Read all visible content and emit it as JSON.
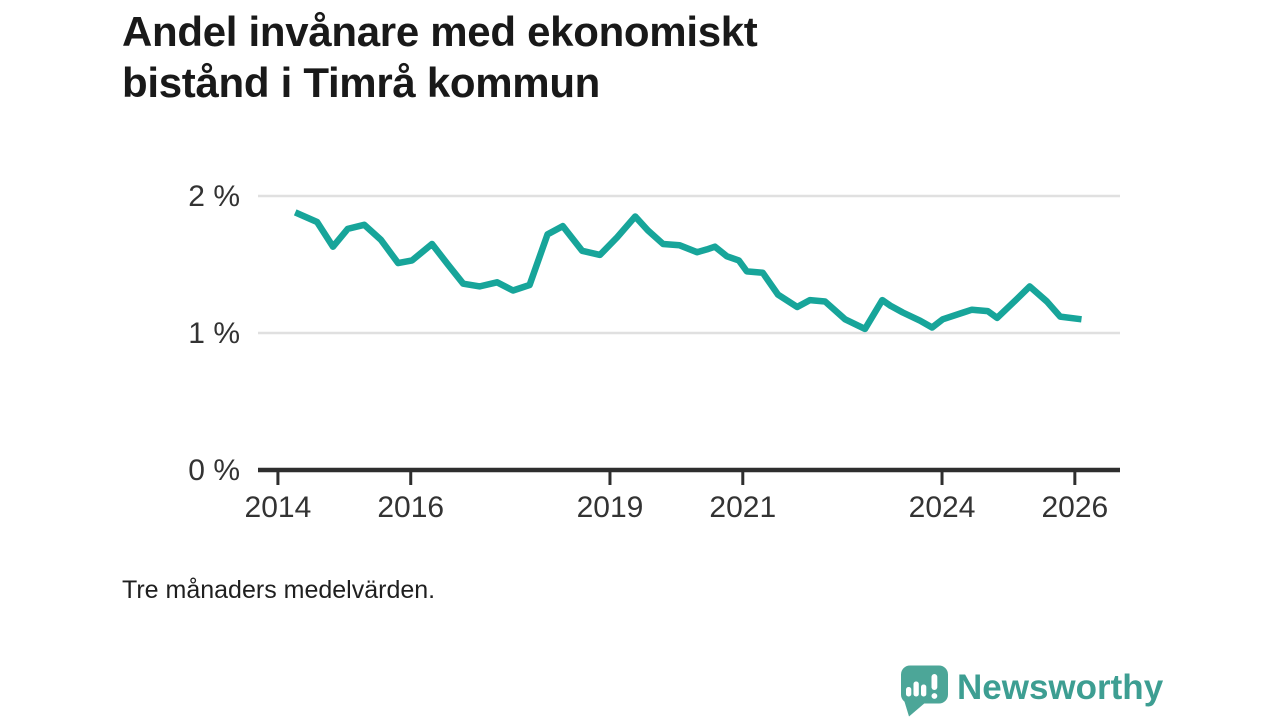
{
  "chart_data": {
    "type": "line",
    "title": "Andel invånare med ekonomiskt bistånd i Timrå kommun",
    "title_lines": [
      "Andel invånare med ekonomiskt",
      "bistånd i Timrå kommun"
    ],
    "note": "Tre månaders medelvärden.",
    "unit": "%",
    "xlabel": "",
    "ylabel": "",
    "legend": "none",
    "grid": "horizontal-only",
    "xlim": [
      2013.7,
      2026.68
    ],
    "ylim": [
      0,
      2
    ],
    "xticks": {
      "values": [
        2014,
        2016,
        2019,
        2021,
        2024,
        2026
      ],
      "labels": [
        "2014",
        "2016",
        "2019",
        "2021",
        "2024",
        "2026"
      ]
    },
    "yticks": {
      "values": [
        0,
        1,
        2
      ],
      "labels": [
        "0 %",
        "1 %",
        "2 %"
      ]
    },
    "series": [
      {
        "name": "Andel invånare med ekonomiskt bistånd",
        "color": "#17A59A",
        "points": [
          [
            2014.26,
            1.88
          ],
          [
            2014.59,
            1.81
          ],
          [
            2014.83,
            1.63
          ],
          [
            2015.05,
            1.76
          ],
          [
            2015.3,
            1.79
          ],
          [
            2015.55,
            1.68
          ],
          [
            2015.81,
            1.51
          ],
          [
            2016.02,
            1.53
          ],
          [
            2016.32,
            1.65
          ],
          [
            2016.56,
            1.5
          ],
          [
            2016.79,
            1.36
          ],
          [
            2017.04,
            1.34
          ],
          [
            2017.3,
            1.37
          ],
          [
            2017.54,
            1.31
          ],
          [
            2017.79,
            1.35
          ],
          [
            2018.06,
            1.72
          ],
          [
            2018.29,
            1.78
          ],
          [
            2018.58,
            1.6
          ],
          [
            2018.85,
            1.57
          ],
          [
            2019.11,
            1.7
          ],
          [
            2019.38,
            1.85
          ],
          [
            2019.57,
            1.75
          ],
          [
            2019.8,
            1.65
          ],
          [
            2020.05,
            1.64
          ],
          [
            2020.31,
            1.59
          ],
          [
            2020.46,
            1.61
          ],
          [
            2020.58,
            1.63
          ],
          [
            2020.76,
            1.56
          ],
          [
            2020.94,
            1.53
          ],
          [
            2021.06,
            1.45
          ],
          [
            2021.3,
            1.44
          ],
          [
            2021.53,
            1.28
          ],
          [
            2021.82,
            1.19
          ],
          [
            2022.01,
            1.24
          ],
          [
            2022.24,
            1.23
          ],
          [
            2022.54,
            1.1
          ],
          [
            2022.84,
            1.03
          ],
          [
            2023.1,
            1.24
          ],
          [
            2023.22,
            1.2
          ],
          [
            2023.41,
            1.15
          ],
          [
            2023.67,
            1.09
          ],
          [
            2023.85,
            1.04
          ],
          [
            2024.01,
            1.1
          ],
          [
            2024.32,
            1.15
          ],
          [
            2024.45,
            1.17
          ],
          [
            2024.69,
            1.16
          ],
          [
            2024.83,
            1.11
          ],
          [
            2025.13,
            1.25
          ],
          [
            2025.32,
            1.34
          ],
          [
            2025.58,
            1.23
          ],
          [
            2025.78,
            1.12
          ],
          [
            2026.1,
            1.1
          ]
        ]
      }
    ]
  },
  "footnote": "Tre månaders medelvärden.",
  "brand": {
    "name": "Newsworthy"
  },
  "colors": {
    "line": "#17A59A",
    "grid": "#E0E0E0",
    "axis": "#2E2E2E",
    "tick_label": "#333333",
    "title": "#191919",
    "text": "#1F1F1F",
    "brand_mark": "#4CA698",
    "brand_text": "#3D9E92"
  }
}
